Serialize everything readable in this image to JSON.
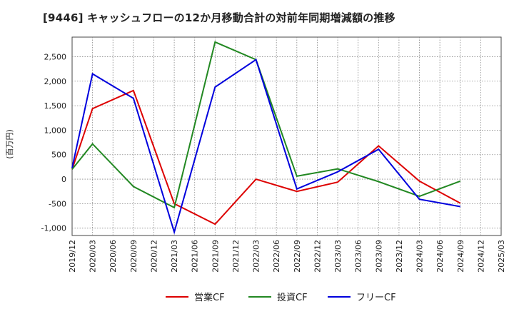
{
  "chart_data": {
    "type": "line",
    "title": "[9446]  キャッシュフローの12か月移動合計の対前年同期増減額の推移",
    "ylabel": "(百万円)",
    "xlabel": "",
    "ylim": [
      -1150,
      2900
    ],
    "yticks": [
      2500,
      2000,
      1500,
      1000,
      500,
      0,
      -500,
      -1000
    ],
    "ytick_labels": [
      "2,500",
      "2,000",
      "1,500",
      "1,000",
      "500",
      "0",
      "-500",
      "-1,000"
    ],
    "x_ticks": [
      "2019/12",
      "2020/03",
      "2020/06",
      "2020/09",
      "2020/12",
      "2021/03",
      "2021/06",
      "2021/09",
      "2021/12",
      "2022/03",
      "2022/06",
      "2022/09",
      "2022/12",
      "2023/03",
      "2023/06",
      "2023/09",
      "2023/12",
      "2024/03",
      "2024/06",
      "2024/09",
      "2024/12",
      "2025/03"
    ],
    "grid": true,
    "legend_position": "bottom",
    "series": [
      {
        "name": "営業CF",
        "color": "#dd0000",
        "x": [
          "2019/12",
          "2020/03",
          "2020/09",
          "2021/03",
          "2021/09",
          "2022/03",
          "2022/09",
          "2023/03",
          "2023/09",
          "2024/03",
          "2024/09"
        ],
        "values": [
          200,
          1440,
          1810,
          -500,
          -920,
          0,
          -250,
          -60,
          680,
          -40,
          -490
        ]
      },
      {
        "name": "投資CF",
        "color": "#228822",
        "x": [
          "2019/12",
          "2020/03",
          "2020/09",
          "2021/03",
          "2021/09",
          "2022/03",
          "2022/09",
          "2023/03",
          "2023/09",
          "2024/03",
          "2024/09"
        ],
        "values": [
          200,
          720,
          -150,
          -580,
          2800,
          2440,
          60,
          210,
          -50,
          -350,
          -40
        ]
      },
      {
        "name": "フリーCF",
        "color": "#0000dd",
        "x": [
          "2019/12",
          "2020/03",
          "2020/09",
          "2021/03",
          "2021/09",
          "2022/03",
          "2022/09",
          "2023/03",
          "2023/09",
          "2024/03",
          "2024/09"
        ],
        "values": [
          230,
          2150,
          1650,
          -1080,
          1880,
          2440,
          -200,
          150,
          610,
          -410,
          -560
        ]
      }
    ]
  }
}
